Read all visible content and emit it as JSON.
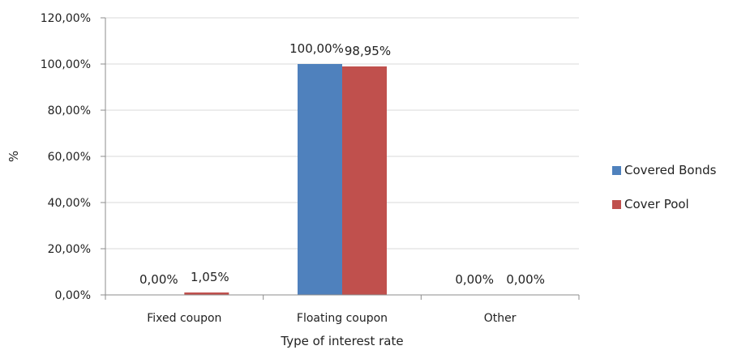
{
  "chart_data": {
    "type": "bar",
    "title": "",
    "xlabel": "Type of interest rate",
    "ylabel": "%",
    "ylim": [
      0,
      120
    ],
    "yticks": [
      0,
      20,
      40,
      60,
      80,
      100,
      120
    ],
    "ytick_labels": [
      "0,00%",
      "20,00%",
      "40,00%",
      "60,00%",
      "80,00%",
      "100,00%",
      "120,00%"
    ],
    "categories": [
      "Fixed coupon",
      "Floating coupon",
      "Other"
    ],
    "series": [
      {
        "name": "Covered Bonds",
        "color": "#4f81bd",
        "values": [
          0,
          100,
          0
        ],
        "labels": [
          "0,00%",
          "100,00%",
          "0,00%"
        ]
      },
      {
        "name": "Cover Pool",
        "color": "#c0504d",
        "values": [
          1.05,
          98.95,
          0
        ],
        "labels": [
          "1,05%",
          "98,95%",
          "0,00%"
        ]
      }
    ],
    "legend_position": "right",
    "grid": true
  }
}
